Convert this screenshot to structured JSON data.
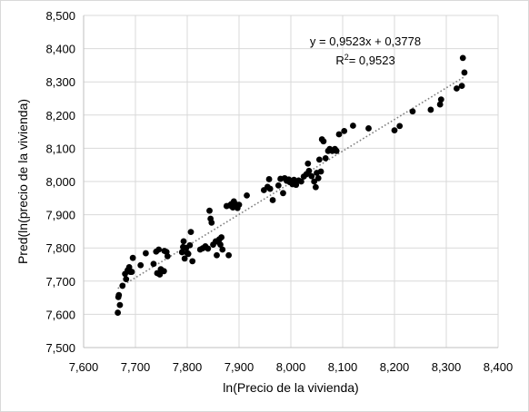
{
  "chart_data": {
    "type": "scatter",
    "title": "",
    "xlabel": "ln(Precio de la vivienda)",
    "ylabel": "Pred(ln(precio de la vivienda)",
    "xlim": [
      7.6,
      8.4
    ],
    "ylim": [
      7.5,
      8.5
    ],
    "xticks": [
      7.6,
      7.7,
      7.8,
      7.9,
      8.0,
      8.1,
      8.2,
      8.3,
      8.4
    ],
    "yticks": [
      7.5,
      7.6,
      7.7,
      7.8,
      7.9,
      8.0,
      8.1,
      8.2,
      8.3,
      8.4,
      8.5
    ],
    "xtick_labels": [
      "7,600",
      "7,700",
      "7,800",
      "7,900",
      "8,000",
      "8,100",
      "8,200",
      "8,300",
      "8,400"
    ],
    "ytick_labels": [
      "7,500",
      "7,600",
      "7,700",
      "7,800",
      "7,900",
      "8,000",
      "8,100",
      "8,200",
      "8,300",
      "8,400",
      "8,500"
    ],
    "grid": true,
    "legend": "none",
    "marker_color": "#000000",
    "trendline": {
      "type": "linear",
      "slope": 0.9523,
      "intercept": 0.3778,
      "style": "dotted",
      "color": "#7f7f7f",
      "equation": "y = 0,9523x + 0,3778",
      "r2": "= 0,9523"
    },
    "points": [
      [
        7.666,
        7.605
      ],
      [
        7.667,
        7.652
      ],
      [
        7.668,
        7.658
      ],
      [
        7.67,
        7.628
      ],
      [
        7.675,
        7.686
      ],
      [
        7.68,
        7.722
      ],
      [
        7.682,
        7.706
      ],
      [
        7.685,
        7.733
      ],
      [
        7.688,
        7.742
      ],
      [
        7.69,
        7.728
      ],
      [
        7.693,
        7.728
      ],
      [
        7.695,
        7.77
      ],
      [
        7.71,
        7.748
      ],
      [
        7.72,
        7.784
      ],
      [
        7.735,
        7.752
      ],
      [
        7.74,
        7.789
      ],
      [
        7.742,
        7.724
      ],
      [
        7.745,
        7.795
      ],
      [
        7.747,
        7.72
      ],
      [
        7.749,
        7.736
      ],
      [
        7.752,
        7.731
      ],
      [
        7.755,
        7.73
      ],
      [
        7.756,
        7.791
      ],
      [
        7.76,
        7.788
      ],
      [
        7.762,
        7.775
      ],
      [
        7.79,
        7.787
      ],
      [
        7.792,
        7.803
      ],
      [
        7.793,
        7.82
      ],
      [
        7.795,
        7.768
      ],
      [
        7.798,
        7.8
      ],
      [
        7.8,
        7.785
      ],
      [
        7.802,
        7.782
      ],
      [
        7.805,
        7.808
      ],
      [
        7.807,
        7.848
      ],
      [
        7.81,
        7.76
      ],
      [
        7.825,
        7.795
      ],
      [
        7.83,
        7.799
      ],
      [
        7.835,
        7.805
      ],
      [
        7.84,
        7.798
      ],
      [
        7.843,
        7.912
      ],
      [
        7.845,
        7.888
      ],
      [
        7.847,
        7.876
      ],
      [
        7.85,
        7.81
      ],
      [
        7.855,
        7.82
      ],
      [
        7.857,
        7.778
      ],
      [
        7.86,
        7.818
      ],
      [
        7.862,
        7.826
      ],
      [
        7.864,
        7.81
      ],
      [
        7.866,
        7.832
      ],
      [
        7.868,
        7.795
      ],
      [
        7.876,
        7.926
      ],
      [
        7.88,
        7.778
      ],
      [
        7.882,
        7.928
      ],
      [
        7.885,
        7.932
      ],
      [
        7.888,
        7.922
      ],
      [
        7.89,
        7.94
      ],
      [
        7.893,
        7.932
      ],
      [
        7.897,
        7.92
      ],
      [
        7.9,
        7.93
      ],
      [
        7.915,
        7.958
      ],
      [
        7.948,
        7.974
      ],
      [
        7.955,
        7.984
      ],
      [
        7.958,
        8.007
      ],
      [
        7.96,
        7.978
      ],
      [
        7.965,
        7.944
      ],
      [
        7.976,
        7.988
      ],
      [
        7.98,
        8.008
      ],
      [
        7.985,
        7.965
      ],
      [
        7.988,
        8.01
      ],
      [
        7.992,
        8.002
      ],
      [
        7.996,
        8.006
      ],
      [
        7.998,
        7.998
      ],
      [
        8.003,
        7.992
      ],
      [
        8.006,
        8.005
      ],
      [
        8.01,
        7.99
      ],
      [
        8.015,
        8.003
      ],
      [
        8.02,
        8.0
      ],
      [
        8.025,
        8.015
      ],
      [
        8.03,
        8.022
      ],
      [
        8.033,
        8.054
      ],
      [
        8.035,
        8.032
      ],
      [
        8.04,
        8.016
      ],
      [
        8.045,
        8.0
      ],
      [
        8.048,
        7.983
      ],
      [
        8.05,
        8.026
      ],
      [
        8.053,
        8.01
      ],
      [
        8.055,
        8.066
      ],
      [
        8.058,
        8.03
      ],
      [
        8.06,
        8.127
      ],
      [
        8.063,
        8.121
      ],
      [
        8.067,
        8.07
      ],
      [
        8.072,
        8.092
      ],
      [
        8.075,
        8.098
      ],
      [
        8.08,
        8.092
      ],
      [
        8.085,
        8.098
      ],
      [
        8.088,
        8.092
      ],
      [
        8.093,
        8.142
      ],
      [
        8.103,
        8.152
      ],
      [
        8.12,
        8.168
      ],
      [
        8.15,
        8.16
      ],
      [
        8.2,
        8.154
      ],
      [
        8.21,
        8.167
      ],
      [
        8.235,
        8.211
      ],
      [
        8.27,
        8.216
      ],
      [
        8.288,
        8.232
      ],
      [
        8.29,
        8.247
      ],
      [
        8.32,
        8.28
      ],
      [
        8.33,
        8.288
      ],
      [
        8.332,
        8.372
      ],
      [
        8.335,
        8.328
      ]
    ]
  }
}
